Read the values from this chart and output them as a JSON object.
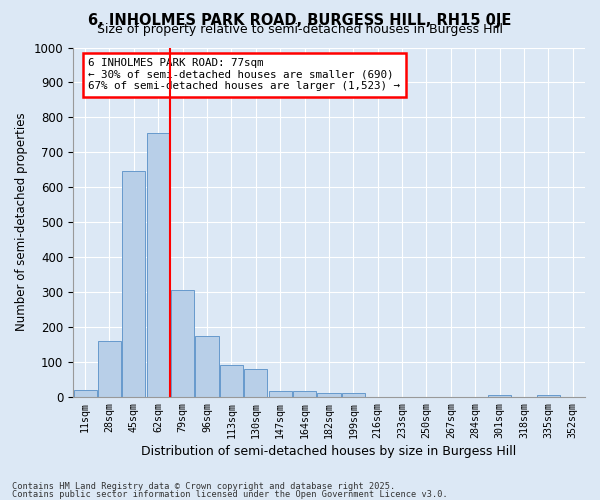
{
  "title": "6, INHOLMES PARK ROAD, BURGESS HILL, RH15 0JE",
  "subtitle": "Size of property relative to semi-detached houses in Burgess Hill",
  "xlabel": "Distribution of semi-detached houses by size in Burgess Hill",
  "ylabel": "Number of semi-detached properties",
  "categories": [
    "11sqm",
    "28sqm",
    "45sqm",
    "62sqm",
    "79sqm",
    "96sqm",
    "113sqm",
    "130sqm",
    "147sqm",
    "164sqm",
    "182sqm",
    "199sqm",
    "216sqm",
    "233sqm",
    "250sqm",
    "267sqm",
    "284sqm",
    "301sqm",
    "318sqm",
    "335sqm",
    "352sqm"
  ],
  "values": [
    20,
    160,
    645,
    755,
    305,
    175,
    90,
    78,
    15,
    15,
    12,
    12,
    0,
    0,
    0,
    0,
    0,
    5,
    0,
    5,
    0
  ],
  "bar_color": "#b8cfe8",
  "bar_edge_color": "#6699cc",
  "property_label": "6 INHOLMES PARK ROAD: 77sqm",
  "pct_smaller": 30,
  "count_smaller": 690,
  "pct_larger": 67,
  "count_larger": 1523,
  "vline_x_index": 3.5,
  "ylim": [
    0,
    1000
  ],
  "yticks": [
    0,
    100,
    200,
    300,
    400,
    500,
    600,
    700,
    800,
    900,
    1000
  ],
  "fig_bg_color": "#dce8f5",
  "ax_bg_color": "#dce8f5",
  "footer_line1": "Contains HM Land Registry data © Crown copyright and database right 2025.",
  "footer_line2": "Contains public sector information licensed under the Open Government Licence v3.0."
}
